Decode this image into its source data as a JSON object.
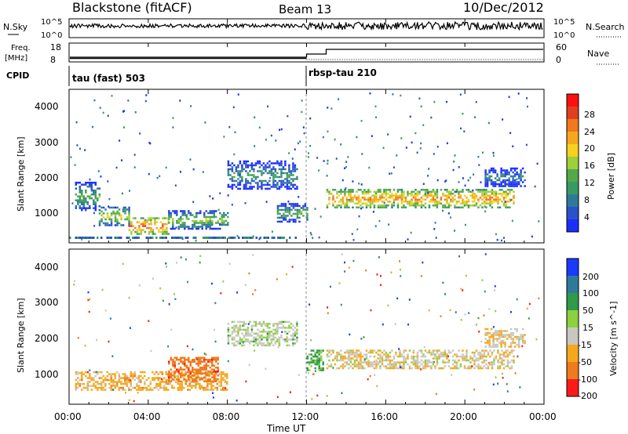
{
  "header": {
    "station": "Blackstone (fitACF)",
    "beam": "Beam 13",
    "date": "10/Dec/2012"
  },
  "strips": {
    "nsky_label": "N.Sky",
    "nsearch_label": "N.Search",
    "nsky_ticks": [
      "10^5",
      "10^0"
    ],
    "nsearch_ticks": [
      "10^5",
      "10^0"
    ],
    "freq_label_1": "Freq.",
    "freq_label_2": "[MHz]",
    "freq_ticks": [
      "18",
      "8"
    ],
    "nave_label": "Nave",
    "nave_ticks": [
      "60",
      "0"
    ],
    "cpid_label": "CPID",
    "cpid_1": "tau (fast) 503",
    "cpid_2": "rbsp-tau 210"
  },
  "power_panel": {
    "ylabel": "Slant Range [km]",
    "yticks": [
      "4000",
      "3000",
      "2000",
      "1000"
    ],
    "colorbar_label": "Power [dB]",
    "colorbar_ticks": [
      "28",
      "24",
      "20",
      "16",
      "12",
      "8",
      "4"
    ],
    "colors": [
      "#1a2fff",
      "#2a52c8",
      "#2f7a9a",
      "#3a9a64",
      "#55a84a",
      "#9dd03a",
      "#f5d21e",
      "#f5a81e",
      "#f0781e",
      "#e0401e",
      "#ff1010"
    ]
  },
  "velocity_panel": {
    "ylabel": "Slant Range [km]",
    "yticks": [
      "4000",
      "3000",
      "2000",
      "1000"
    ],
    "colorbar_label": "Velocity [m s^-1]",
    "colorbar_ticks": [
      "200",
      "100",
      "50",
      "15",
      "-15",
      "-50",
      "-100",
      "-200"
    ],
    "colors": [
      "#1a3aff",
      "#2f7a9a",
      "#2f9a4a",
      "#8dd040",
      "#c8c8c0",
      "#f5a81e",
      "#f07a1e",
      "#ff1a1a"
    ]
  },
  "xaxis": {
    "label": "Time UT",
    "ticks": [
      "00:00",
      "04:00",
      "08:00",
      "12:00",
      "16:00",
      "20:00",
      "00:00"
    ]
  },
  "chart_data": {
    "type": "heatmap",
    "x_range_hours": [
      0,
      24
    ],
    "y_range_km": [
      180,
      4500
    ],
    "cpid_change_hour": 12.0,
    "power_bands": [
      {
        "x": [
          0.3,
          1.5
        ],
        "y_km": [
          1100,
          1900
        ],
        "level_db": 14
      },
      {
        "x": [
          1.5,
          3.0
        ],
        "y_km": [
          700,
          1200
        ],
        "level_db": 18
      },
      {
        "x": [
          3.0,
          5.0
        ],
        "y_km": [
          450,
          900
        ],
        "level_db": 26
      },
      {
        "x": [
          5.0,
          8.0
        ],
        "y_km": [
          600,
          1100
        ],
        "level_db": 16
      },
      {
        "x": [
          8.0,
          11.5
        ],
        "y_km": [
          1700,
          2500
        ],
        "level_db": 12
      },
      {
        "x": [
          10.5,
          12.0
        ],
        "y_km": [
          800,
          1300
        ],
        "level_db": 14
      },
      {
        "x": [
          13.0,
          22.5
        ],
        "y_km": [
          1200,
          1700
        ],
        "level_db": 24
      },
      {
        "x": [
          21.0,
          23.0
        ],
        "y_km": [
          1800,
          2300
        ],
        "level_db": 10
      }
    ],
    "velocity_bands": [
      {
        "x": [
          0.3,
          8.0
        ],
        "y_km": [
          600,
          1100
        ],
        "velocity": -30
      },
      {
        "x": [
          5.0,
          7.5
        ],
        "y_km": [
          800,
          1500
        ],
        "velocity": -80
      },
      {
        "x": [
          8.0,
          11.5
        ],
        "y_km": [
          1800,
          2500
        ],
        "velocity": 10
      },
      {
        "x": [
          12.0,
          12.8
        ],
        "y_km": [
          1100,
          1700
        ],
        "velocity": 40
      },
      {
        "x": [
          13.0,
          22.5
        ],
        "y_km": [
          1200,
          1700
        ],
        "velocity": -5
      },
      {
        "x": [
          21.0,
          23.0
        ],
        "y_km": [
          1800,
          2300
        ],
        "velocity": -10
      }
    ]
  }
}
